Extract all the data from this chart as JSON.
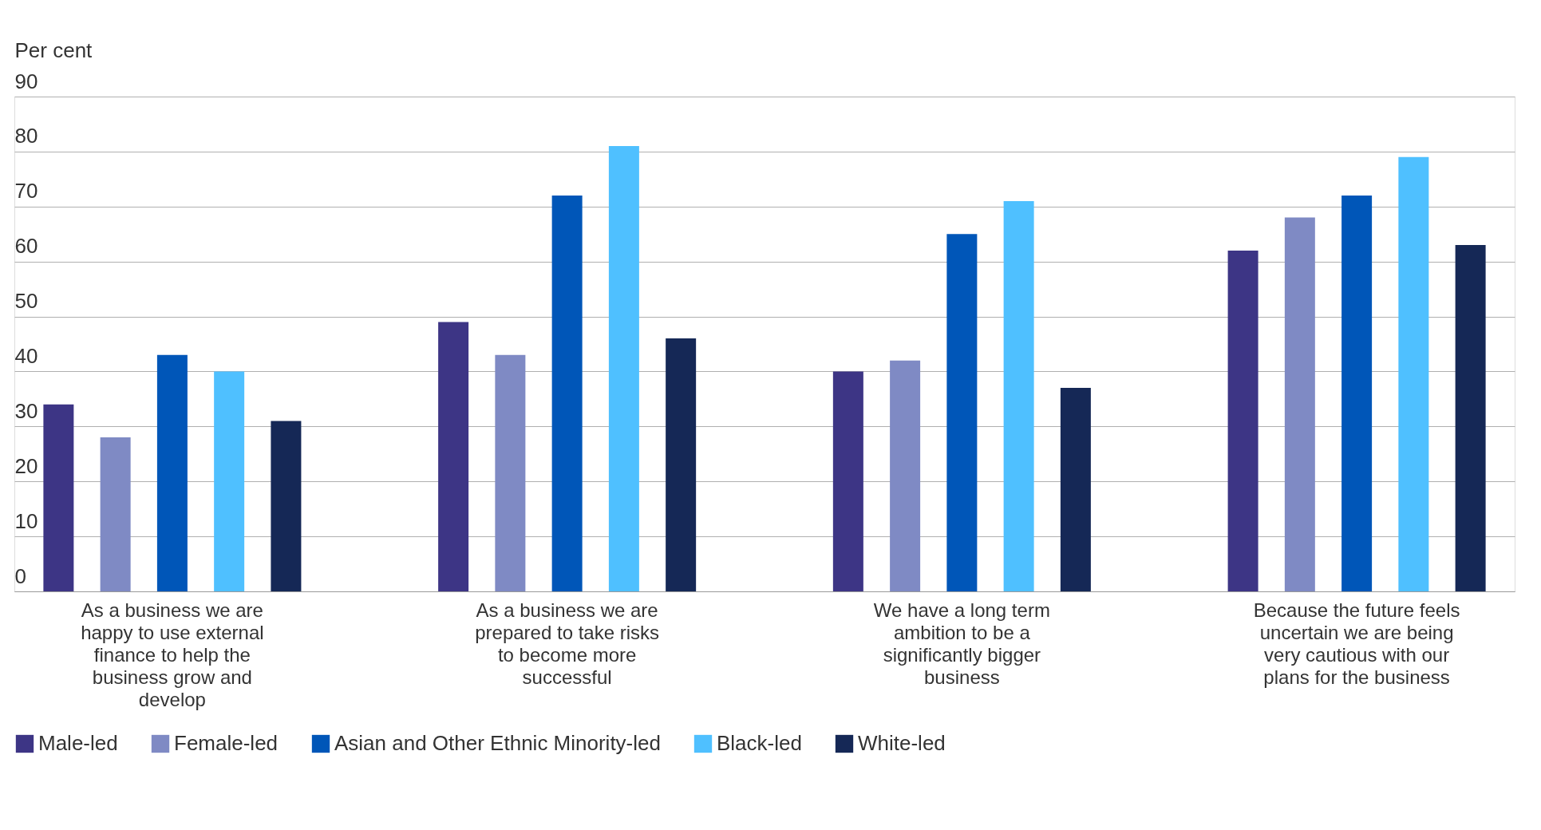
{
  "chart_data": {
    "type": "bar",
    "ylabel": "Per cent",
    "categories": [
      "As a business we are happy to use external finance to help the business grow and develop",
      "As a business we are prepared to take risks to become more successful",
      "We have a long term ambition to be a significantly bigger business",
      "Because the future feels uncertain we are being very cautious with our plans for the business"
    ],
    "series": [
      {
        "name": "Male-led",
        "color": "#3d3585",
        "values": [
          34,
          49,
          40,
          62
        ]
      },
      {
        "name": "Female-led",
        "color": "#7f8ac4",
        "values": [
          28,
          43,
          42,
          68
        ]
      },
      {
        "name": "Asian and Other Ethnic Minority-led",
        "color": "#0056b8",
        "values": [
          43,
          72,
          65,
          72
        ]
      },
      {
        "name": "Black-led",
        "color": "#4fc0ff",
        "values": [
          40,
          81,
          71,
          79
        ]
      },
      {
        "name": "White-led",
        "color": "#152856",
        "values": [
          31,
          46,
          37,
          63
        ]
      }
    ],
    "ylim": [
      0,
      90
    ],
    "yticks": [
      0,
      10,
      20,
      30,
      40,
      50,
      60,
      70,
      80,
      90
    ],
    "grid": "y",
    "legend": "bottom"
  }
}
